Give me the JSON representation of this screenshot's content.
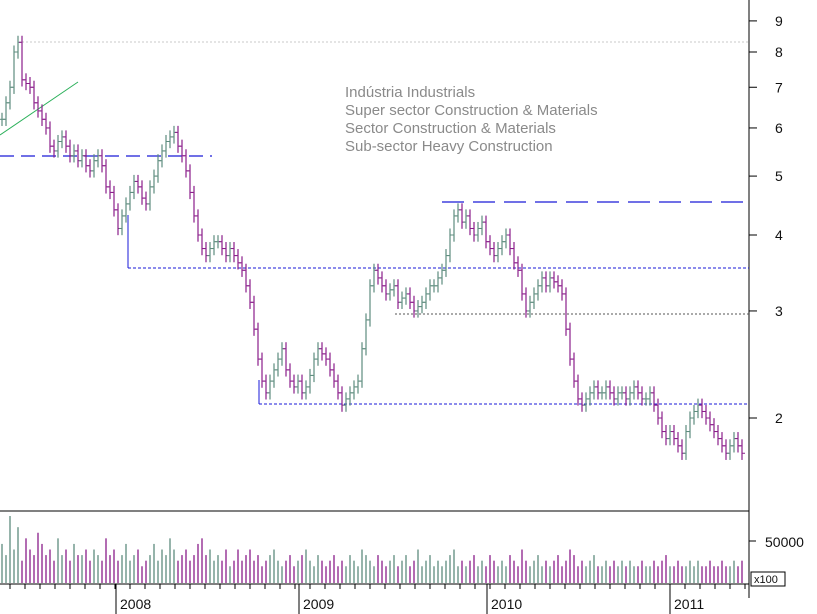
{
  "chart_data": {
    "type": "ohlc",
    "price_scale": "log",
    "ylim": [
      1.3,
      10
    ],
    "y_ticks": [
      {
        "value": 9,
        "label": "9"
      },
      {
        "value": 8,
        "label": "8"
      },
      {
        "value": 7,
        "label": "7"
      },
      {
        "value": 6,
        "label": "6"
      },
      {
        "value": 5,
        "label": "5"
      },
      {
        "value": 4,
        "label": "4"
      },
      {
        "value": 3,
        "label": "3"
      },
      {
        "value": 2,
        "label": "2"
      }
    ],
    "x_labels": [
      "2008",
      "2009",
      "2010",
      "2011"
    ],
    "annotation_lines": [
      "Indústria Industrials",
      "Super sector Construction & Materials",
      "Sector Construction & Materials",
      "Sub-sector Heavy Construction"
    ],
    "volume_tick_label": "50000",
    "volume_unit_label": "x100",
    "grid": false,
    "colors": {
      "bar_up": "#5e8c7e",
      "bar_down": "#8a1d8a",
      "support_line": "#1a1ad8",
      "trend_line": "#2bb05a",
      "top_guide": "#c8c8c8"
    },
    "price_series": [
      6.2,
      6.6,
      7.0,
      8.0,
      8.3,
      7.2,
      7.1,
      7.0,
      6.6,
      6.4,
      6.2,
      6.0,
      5.6,
      5.5,
      5.7,
      5.8,
      5.6,
      5.4,
      5.5,
      5.3,
      5.4,
      5.2,
      5.1,
      5.3,
      5.4,
      5.2,
      4.8,
      4.7,
      4.4,
      4.1,
      4.3,
      4.5,
      4.7,
      4.9,
      4.8,
      4.6,
      4.5,
      4.8,
      5.0,
      5.3,
      5.5,
      5.7,
      5.8,
      5.9,
      5.6,
      5.4,
      5.1,
      4.7,
      4.3,
      4.0,
      3.8,
      3.7,
      3.8,
      3.9,
      3.9,
      3.8,
      3.7,
      3.8,
      3.7,
      3.6,
      3.5,
      3.3,
      3.1,
      2.8,
      2.5,
      2.3,
      2.2,
      2.3,
      2.4,
      2.5,
      2.6,
      2.4,
      2.3,
      2.25,
      2.3,
      2.2,
      2.25,
      2.35,
      2.5,
      2.6,
      2.55,
      2.5,
      2.4,
      2.3,
      2.2,
      2.1,
      2.15,
      2.2,
      2.25,
      2.3,
      2.6,
      2.9,
      3.3,
      3.5,
      3.4,
      3.3,
      3.2,
      3.25,
      3.3,
      3.1,
      3.15,
      3.2,
      3.1,
      3.0,
      3.05,
      3.1,
      3.2,
      3.3,
      3.3,
      3.4,
      3.5,
      3.7,
      4.0,
      4.3,
      4.4,
      4.2,
      4.3,
      4.1,
      4.0,
      4.1,
      4.2,
      3.9,
      3.8,
      3.7,
      3.8,
      3.9,
      4.0,
      3.8,
      3.6,
      3.5,
      3.2,
      3.0,
      3.1,
      3.2,
      3.3,
      3.4,
      3.3,
      3.4,
      3.35,
      3.3,
      3.2,
      2.8,
      2.5,
      2.3,
      2.15,
      2.1,
      2.15,
      2.2,
      2.25,
      2.2,
      2.2,
      2.25,
      2.2,
      2.15,
      2.2,
      2.2,
      2.15,
      2.2,
      2.25,
      2.2,
      2.15,
      2.15,
      2.2,
      2.1,
      2.0,
      1.9,
      1.85,
      1.9,
      1.85,
      1.8,
      1.75,
      1.9,
      2.0,
      2.05,
      2.1,
      2.05,
      2.0,
      1.95,
      1.9,
      1.85,
      1.8,
      1.75,
      1.8,
      1.85,
      1.8,
      1.75
    ],
    "volume_series": [
      7,
      5,
      12,
      6,
      10,
      4,
      8,
      6,
      5,
      9,
      7,
      5,
      6,
      4,
      8,
      5,
      6,
      4,
      7,
      5,
      5,
      6,
      4,
      6,
      5,
      4,
      8,
      5,
      6,
      4,
      5,
      7,
      4,
      5,
      6,
      3,
      4,
      5,
      7,
      4,
      6,
      5,
      8,
      6,
      4,
      5,
      6,
      4,
      5,
      7,
      8,
      5,
      6,
      4,
      5,
      4,
      6,
      3,
      4,
      6,
      4,
      5,
      6,
      4,
      5,
      3,
      4,
      5,
      6,
      4,
      3,
      4,
      5,
      3,
      4,
      5,
      6,
      4,
      3,
      5,
      4,
      3,
      4,
      5,
      3,
      4,
      3,
      5,
      4,
      3,
      6,
      5,
      4,
      3,
      5,
      4,
      3,
      4,
      5,
      3,
      4,
      5,
      3,
      4,
      6,
      3,
      4,
      5,
      3,
      4,
      3,
      4,
      5,
      6,
      3,
      4,
      3,
      4,
      5,
      3,
      4,
      3,
      5,
      4,
      3,
      4,
      3,
      5,
      4,
      3,
      6,
      4,
      3,
      4,
      5,
      3,
      4,
      3,
      4,
      5,
      3,
      4,
      6,
      5,
      3,
      4,
      3,
      4,
      5,
      3,
      3,
      4,
      3,
      4,
      3,
      4,
      3,
      4,
      3,
      3,
      4,
      3,
      3,
      4,
      3,
      4,
      5,
      3,
      3,
      4,
      3,
      3,
      4,
      3,
      4,
      3,
      3,
      4,
      3,
      3,
      4,
      3,
      3,
      4,
      3,
      4
    ]
  }
}
